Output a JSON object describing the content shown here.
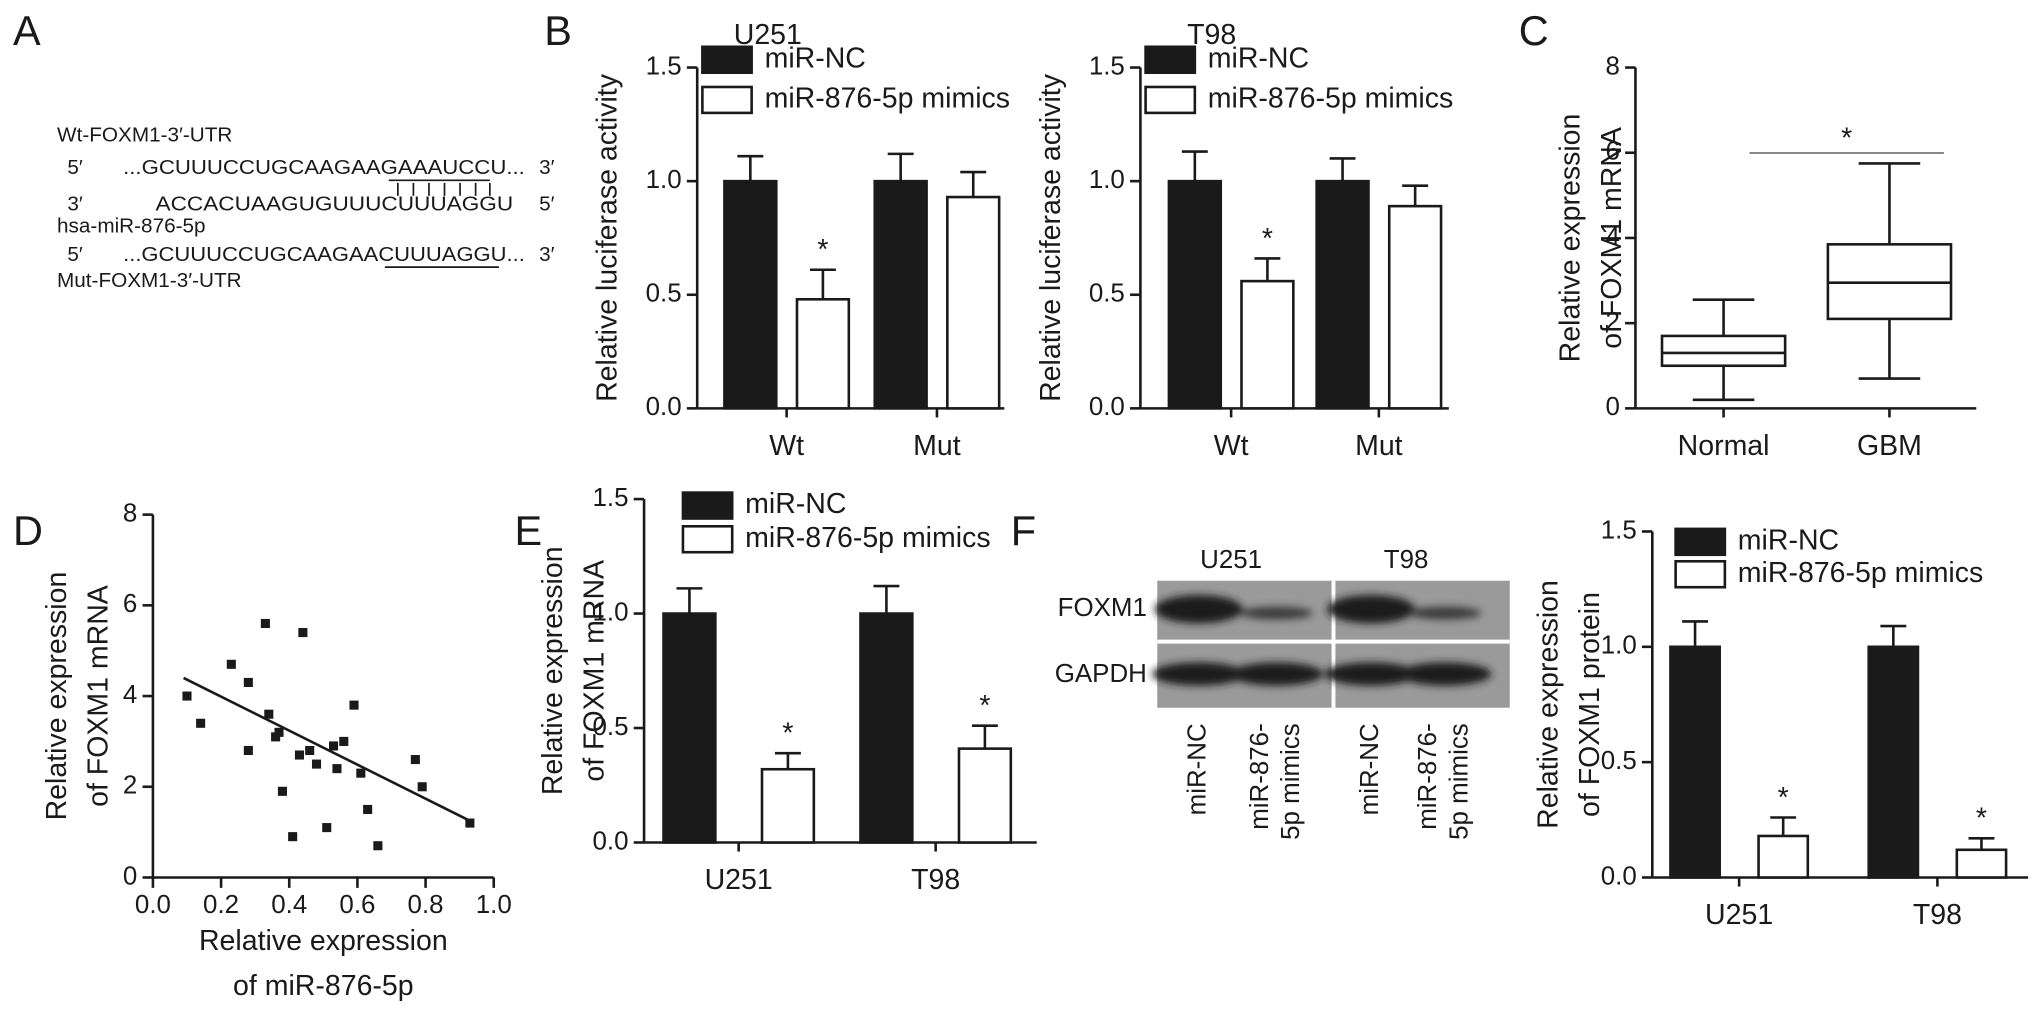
{
  "panel_labels": [
    "A",
    "B",
    "C",
    "D",
    "E",
    "F"
  ],
  "sequence": {
    "wt_name": "Wt-FOXM1-3′-UTR",
    "wt": {
      "left": "5′",
      "seq": "...GCUUUCCUGCAAGAAGAAAUCCU...",
      "right": "3′"
    },
    "mirna": {
      "left": "3′",
      "seq": "ACCACUAAGUGUUUCUUUAGGU",
      "right": "5′"
    },
    "mirna_name": "hsa-miR-876-5p",
    "mut": {
      "left": "5′",
      "seq": "...GCUUUCCUGCAAGAACUUUAGGU...",
      "right": "3′"
    },
    "mut_name": "Mut-FOXM1-3′-UTR"
  },
  "western_blot": {
    "cell_lines": [
      "U251",
      "T98"
    ],
    "proteins": [
      "FOXM1",
      "GAPDH"
    ],
    "lanes": [
      [
        "miR-NC"
      ],
      [
        "miR-876-",
        "5p mimics"
      ],
      [
        "miR-NC"
      ],
      [
        "miR-876-",
        "5p mimics"
      ]
    ]
  },
  "chart_data": [
    {
      "type": "bar",
      "title": "U251",
      "ylabel": "Relative luciferase activity",
      "categories": [
        "Wt",
        "Mut"
      ],
      "series": [
        {
          "name": "miR-NC",
          "color": "#1a1a1a",
          "values": [
            1.0,
            1.0
          ],
          "errors": [
            0.11,
            0.12
          ]
        },
        {
          "name": "miR-876-5p mimics",
          "color": "#ffffff",
          "values": [
            0.48,
            0.93
          ],
          "errors": [
            0.13,
            0.11
          ]
        }
      ],
      "annotations": [
        {
          "text": "*",
          "series": 1,
          "index": 0
        }
      ],
      "ylim": [
        0,
        1.5
      ],
      "yticks": [
        {
          "value": 0,
          "label": "0.0"
        },
        0.5,
        {
          "value": 1,
          "label": "1.0"
        },
        1.5
      ]
    },
    {
      "type": "bar",
      "title": "T98",
      "ylabel": "Relative luciferase activity",
      "categories": [
        "Wt",
        "Mut"
      ],
      "series": [
        {
          "name": "miR-NC",
          "color": "#1a1a1a",
          "values": [
            1.0,
            1.0
          ],
          "errors": [
            0.13,
            0.1
          ]
        },
        {
          "name": "miR-876-5p mimics",
          "color": "#ffffff",
          "values": [
            0.56,
            0.89
          ],
          "errors": [
            0.1,
            0.09
          ]
        }
      ],
      "annotations": [
        {
          "text": "*",
          "series": 1,
          "index": 0
        }
      ],
      "ylim": [
        0,
        1.5
      ],
      "yticks": [
        {
          "value": 0,
          "label": "0.0"
        },
        0.5,
        {
          "value": 1,
          "label": "1.0"
        },
        1.5
      ]
    },
    {
      "type": "box",
      "ylabel": [
        "Relative expression",
        "of FOXM1 mRNA"
      ],
      "categories": [
        "Normal",
        "GBM"
      ],
      "boxes": [
        {
          "min": 0.2,
          "q1": 1.0,
          "median": 1.3,
          "q3": 1.7,
          "max": 2.55
        },
        {
          "min": 0.7,
          "q1": 2.1,
          "median": 2.95,
          "q3": 3.85,
          "max": 5.75
        }
      ],
      "annotations": [
        {
          "text": "*"
        }
      ],
      "ylim": [
        0,
        8
      ],
      "yticks": [
        0,
        2,
        4,
        6,
        8
      ]
    },
    {
      "type": "scatter",
      "ylabel": [
        "Relative expression",
        "of FOXM1 mRNA"
      ],
      "xlabel": [
        "Relative expression",
        "of miR-876-5p"
      ],
      "x": [
        0.1,
        0.14,
        0.23,
        0.28,
        0.28,
        0.33,
        0.34,
        0.36,
        0.37,
        0.38,
        0.41,
        0.43,
        0.44,
        0.46,
        0.48,
        0.51,
        0.53,
        0.54,
        0.56,
        0.59,
        0.61,
        0.63,
        0.66,
        0.77,
        0.79,
        0.93
      ],
      "y": [
        4.0,
        3.4,
        4.7,
        4.3,
        2.8,
        5.6,
        3.6,
        3.1,
        3.2,
        1.9,
        0.9,
        2.7,
        5.4,
        2.8,
        2.5,
        1.1,
        2.9,
        2.4,
        3.0,
        3.8,
        2.3,
        1.5,
        0.7,
        2.6,
        2.0,
        1.2
      ],
      "trendline": {
        "x": [
          0.09,
          0.93
        ],
        "y": [
          4.4,
          1.25
        ]
      },
      "xlim": [
        0,
        1
      ],
      "xticks": [
        {
          "value": 0,
          "label": "0.0"
        },
        0.2,
        0.4,
        0.6,
        0.8,
        {
          "value": 1,
          "label": "1.0"
        }
      ],
      "ylim": [
        0,
        8
      ],
      "yticks": [
        0,
        2,
        4,
        6,
        8
      ]
    },
    {
      "type": "bar",
      "ylabel": [
        "Relative expression",
        "of FOXM1 mRNA"
      ],
      "categories": [
        "U251",
        "T98"
      ],
      "series": [
        {
          "name": "miR-NC",
          "color": "#1a1a1a",
          "values": [
            1.0,
            1.0
          ],
          "errors": [
            0.11,
            0.12
          ]
        },
        {
          "name": "miR-876-5p mimics",
          "color": "#ffffff",
          "values": [
            0.32,
            0.41
          ],
          "errors": [
            0.07,
            0.1
          ]
        }
      ],
      "annotations": [
        {
          "text": "*",
          "series": 1,
          "index": 0
        },
        {
          "text": "*",
          "series": 1,
          "index": 1
        }
      ],
      "ylim": [
        0,
        1.5
      ],
      "yticks": [
        {
          "value": 0,
          "label": "0.0"
        },
        0.5,
        {
          "value": 1,
          "label": "1.0"
        },
        1.5
      ]
    },
    {
      "type": "bar",
      "ylabel": [
        "Relative expression",
        "of FOXM1 protein"
      ],
      "categories": [
        "U251",
        "T98"
      ],
      "series": [
        {
          "name": "miR-NC",
          "color": "#1a1a1a",
          "values": [
            1.0,
            1.0
          ],
          "errors": [
            0.11,
            0.09
          ]
        },
        {
          "name": "miR-876-5p mimics",
          "color": "#ffffff",
          "values": [
            0.18,
            0.12
          ],
          "errors": [
            0.08,
            0.05
          ]
        }
      ],
      "annotations": [
        {
          "text": "*",
          "series": 1,
          "index": 0
        },
        {
          "text": "*",
          "series": 1,
          "index": 1
        }
      ],
      "ylim": [
        0,
        1.5
      ],
      "yticks": [
        {
          "value": 0,
          "label": "0.0"
        },
        0.5,
        {
          "value": 1,
          "label": "1.0"
        },
        1.5
      ]
    }
  ]
}
